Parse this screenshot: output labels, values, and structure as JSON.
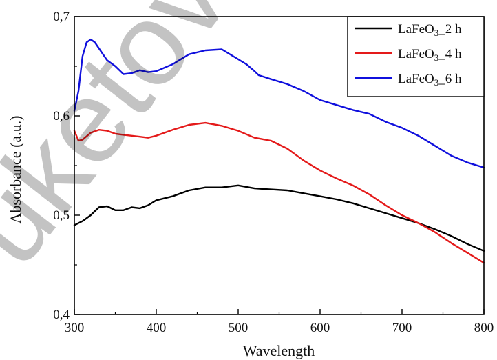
{
  "chart_data": {
    "type": "line",
    "xlabel": "Wavelength",
    "ylabel": "Absorbance (a.u.)",
    "xlim": [
      300,
      800
    ],
    "ylim": [
      0.4,
      0.7
    ],
    "xticks": [
      300,
      400,
      500,
      600,
      700,
      800
    ],
    "xtick_labels": [
      "300",
      "400",
      "500",
      "600",
      "700",
      "800"
    ],
    "yticks": [
      0.4,
      0.5,
      0.6,
      0.7
    ],
    "ytick_labels": [
      "0,4",
      "0,5",
      "0,6",
      "0,7"
    ],
    "grid": false,
    "legend_position": "top-right",
    "series": [
      {
        "name": "LaFeO3_2 h",
        "legend": {
          "main": "LaFeO",
          "sub": "3",
          "rest": "_2 h"
        },
        "color": "#000000",
        "x": [
          300,
          310,
          320,
          330,
          340,
          350,
          360,
          370,
          380,
          390,
          400,
          420,
          440,
          460,
          480,
          500,
          520,
          540,
          560,
          580,
          600,
          620,
          640,
          660,
          680,
          700,
          720,
          740,
          760,
          780,
          800
        ],
        "y": [
          0.49,
          0.494,
          0.5,
          0.508,
          0.509,
          0.505,
          0.505,
          0.508,
          0.507,
          0.51,
          0.515,
          0.519,
          0.525,
          0.528,
          0.528,
          0.53,
          0.527,
          0.526,
          0.525,
          0.522,
          0.519,
          0.516,
          0.512,
          0.507,
          0.502,
          0.497,
          0.492,
          0.486,
          0.479,
          0.471,
          0.464
        ]
      },
      {
        "name": "LaFeO3_4 h",
        "legend": {
          "main": "LaFeO",
          "sub": "3",
          "rest": "_4 h"
        },
        "color": "#e41a1a",
        "x": [
          300,
          305,
          310,
          320,
          330,
          340,
          350,
          360,
          370,
          380,
          390,
          400,
          420,
          440,
          460,
          480,
          500,
          520,
          540,
          560,
          580,
          600,
          620,
          640,
          660,
          680,
          700,
          720,
          740,
          760,
          780,
          800
        ],
        "y": [
          0.585,
          0.575,
          0.576,
          0.583,
          0.586,
          0.585,
          0.582,
          0.581,
          0.58,
          0.579,
          0.578,
          0.58,
          0.586,
          0.591,
          0.593,
          0.59,
          0.585,
          0.578,
          0.575,
          0.567,
          0.555,
          0.545,
          0.537,
          0.53,
          0.521,
          0.51,
          0.5,
          0.492,
          0.483,
          0.472,
          0.462,
          0.452
        ]
      },
      {
        "name": "LaFeO3_6 h",
        "legend": {
          "main": "LaFeO",
          "sub": "3",
          "rest": "_6 h"
        },
        "color": "#1010dd",
        "x": [
          300,
          305,
          310,
          315,
          320,
          325,
          330,
          340,
          350,
          360,
          370,
          380,
          390,
          400,
          420,
          440,
          460,
          480,
          500,
          510,
          520,
          525,
          540,
          560,
          580,
          600,
          620,
          640,
          660,
          680,
          700,
          720,
          740,
          760,
          780,
          800
        ],
        "y": [
          0.605,
          0.625,
          0.66,
          0.674,
          0.677,
          0.674,
          0.668,
          0.656,
          0.65,
          0.642,
          0.643,
          0.646,
          0.644,
          0.645,
          0.652,
          0.662,
          0.666,
          0.667,
          0.657,
          0.652,
          0.645,
          0.641,
          0.637,
          0.632,
          0.625,
          0.616,
          0.611,
          0.606,
          0.602,
          0.594,
          0.588,
          0.58,
          0.57,
          0.56,
          0.553,
          0.548
        ]
      }
    ]
  },
  "watermark": {
    "text": "uketov"
  }
}
